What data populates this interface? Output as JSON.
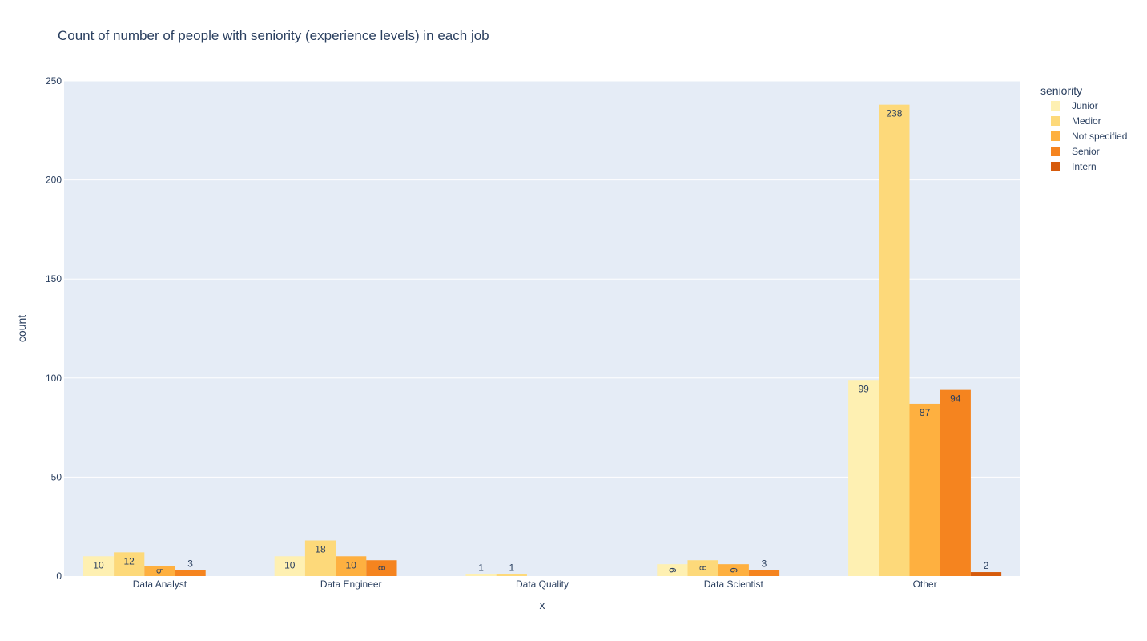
{
  "chart_data": {
    "type": "bar",
    "barmode": "group",
    "title": "Count of number of people with seniority (experience levels) in each job",
    "xlabel": "x",
    "ylabel": "count",
    "ylim": [
      0,
      250
    ],
    "yticks": [
      0,
      50,
      100,
      150,
      200,
      250
    ],
    "grid": true,
    "legend_title": "seniority",
    "legend_position": "right",
    "categories": [
      "Data Analyst",
      "Data Engineer",
      "Data Quality",
      "Data Scientist",
      "Other"
    ],
    "series": [
      {
        "name": "Junior",
        "color": "#fef0b2",
        "values": [
          10,
          10,
          1,
          6,
          99
        ]
      },
      {
        "name": "Medior",
        "color": "#fdd97a",
        "values": [
          12,
          18,
          1,
          8,
          238
        ]
      },
      {
        "name": "Not specified",
        "color": "#feb040",
        "values": [
          5,
          10,
          null,
          6,
          87
        ]
      },
      {
        "name": "Senior",
        "color": "#f5841f",
        "values": [
          3,
          8,
          null,
          3,
          94
        ]
      },
      {
        "name": "Intern",
        "color": "#d65b0c",
        "values": [
          null,
          null,
          null,
          null,
          2
        ]
      }
    ],
    "plot_background": "#e5ecf6",
    "grid_color": "#ffffff"
  }
}
